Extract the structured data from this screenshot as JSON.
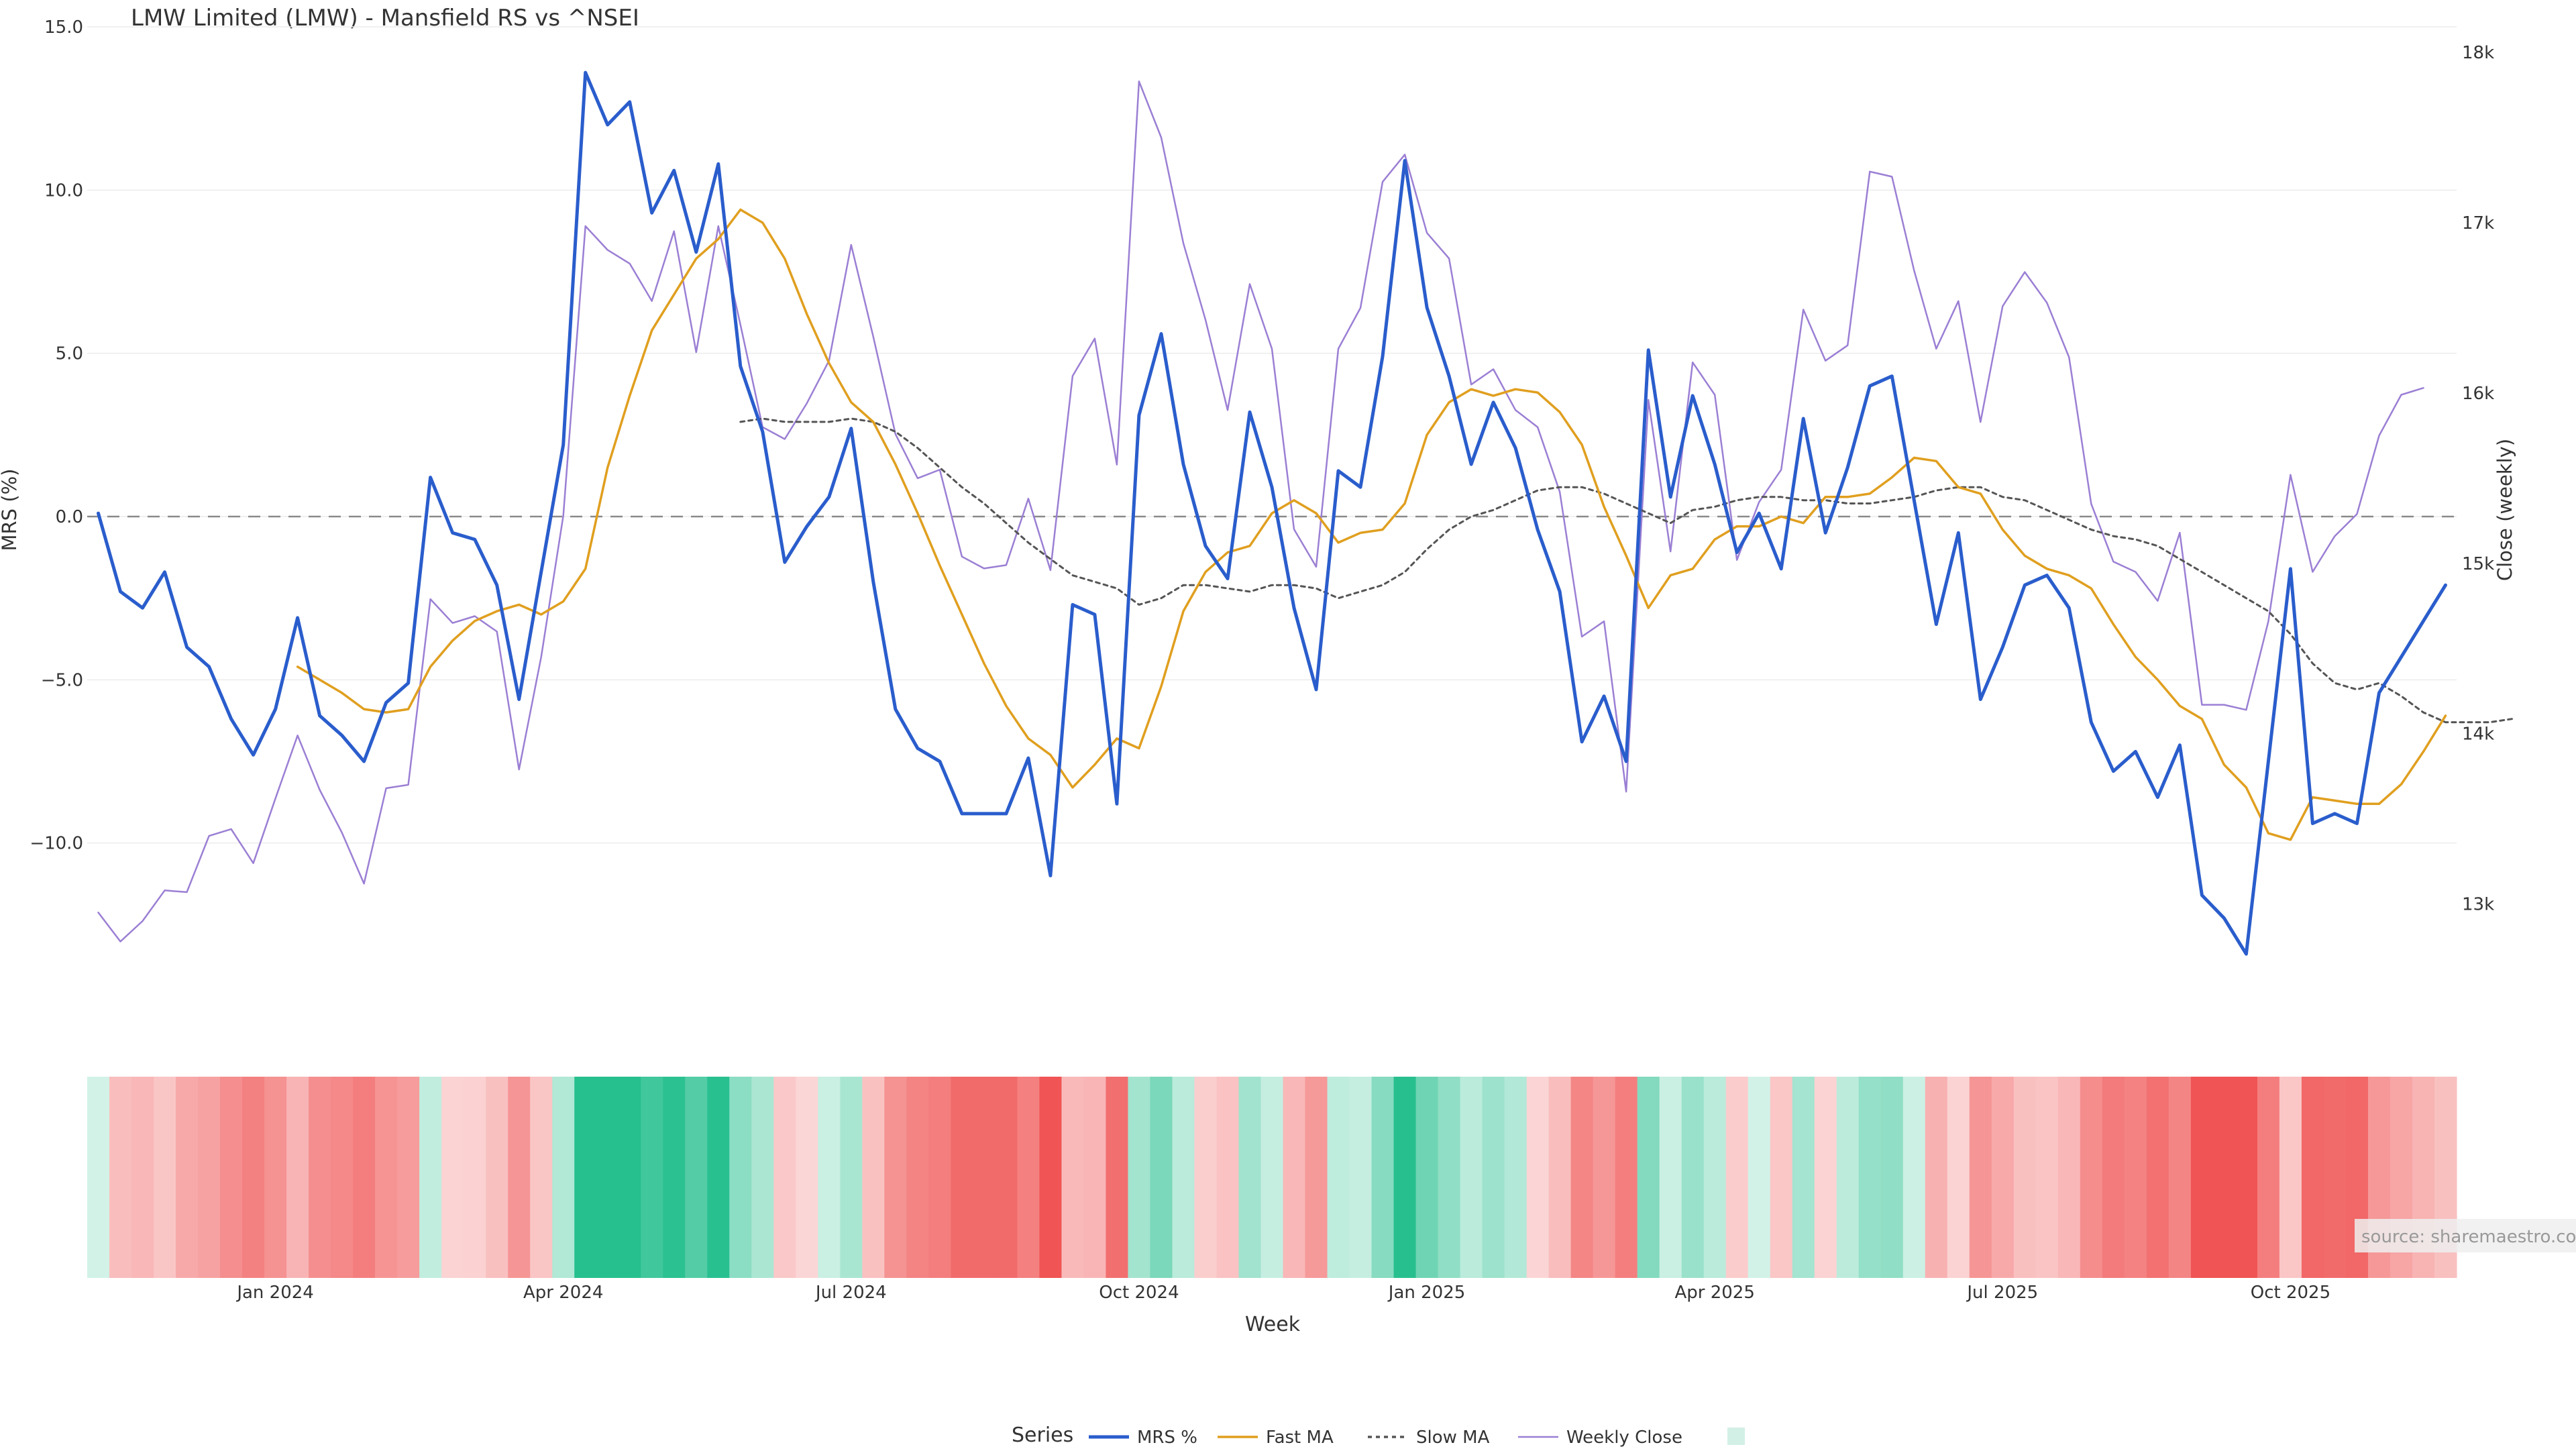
{
  "chart_data": {
    "type": "line",
    "title": "LMW Limited (LMW) - Mansfield RS vs ^NSEI",
    "xlabel": "Week",
    "ylabel_left": "MRS (%)",
    "ylabel_right": "Close (weekly)",
    "ylim_left": [
      -15.0,
      15.0
    ],
    "ylim_right": [
      12400,
      18150
    ],
    "left_ticks": [
      15.0,
      10.0,
      5.0,
      0.0,
      -5.0,
      -10.0
    ],
    "left_tick_labels": [
      "15.0",
      "10.0",
      "5.0",
      "0.0",
      "−5.0",
      "−10.0"
    ],
    "right_ticks": [
      18000,
      17000,
      16000,
      15000,
      14000,
      13000
    ],
    "right_tick_labels": [
      "18k",
      "17k",
      "16k",
      "15k",
      "14k",
      "13k"
    ],
    "x_tick_positions": [
      8.5,
      21.5,
      34.5,
      47.5,
      60.5,
      73.5,
      86.5,
      99.5
    ],
    "x_tick_labels": [
      "Jan 2024",
      "Apr 2024",
      "Jul 2024",
      "Oct 2024",
      "Jan 2025",
      "Apr 2025",
      "Jul 2025",
      "Oct 2025"
    ],
    "legend": {
      "title": "Series",
      "position": "bottom-center",
      "items": [
        {
          "name": "MRS %",
          "style": "solid-thick",
          "color": "#2a5dcc"
        },
        {
          "name": "Fast MA",
          "style": "solid",
          "color": "#e09f1f"
        },
        {
          "name": "Slow MA",
          "style": "dotted",
          "color": "#555555"
        },
        {
          "name": "Weekly Close",
          "style": "solid-thin",
          "color": "#9b7fd4"
        },
        {
          "name": "",
          "style": "swatch",
          "color": "#d3f0e6"
        }
      ]
    },
    "source_note": "source: sharemaestro.com",
    "series": [
      {
        "name": "MRS %",
        "axis": "left",
        "values": [
          0.1,
          -2.3,
          -2.8,
          -1.7,
          -4.0,
          -4.6,
          -6.2,
          -7.3,
          -5.9,
          -3.1,
          -6.1,
          -6.7,
          -7.5,
          -5.7,
          -5.1,
          1.2,
          -0.5,
          -0.7,
          -2.1,
          -5.6,
          -1.7,
          2.2,
          13.6,
          12.0,
          12.7,
          9.3,
          10.6,
          8.1,
          10.8,
          4.6,
          2.6,
          -1.4,
          -0.3,
          0.6,
          2.7,
          -2.0,
          -5.9,
          -7.1,
          -7.5,
          -9.1,
          -9.1,
          -9.1,
          -7.4,
          -11.0,
          -2.7,
          -3.0,
          -8.8,
          3.1,
          5.6,
          1.6,
          -0.9,
          -1.9,
          3.2,
          0.9,
          -2.8,
          -5.3,
          1.4,
          0.9,
          4.9,
          10.9,
          6.4,
          4.3,
          1.6,
          3.5,
          2.1,
          -0.4,
          -2.3,
          -6.9,
          -5.5,
          -7.5,
          5.1,
          0.6,
          3.7,
          1.6,
          -1.1,
          0.1,
          -1.6,
          3.0,
          -0.5,
          1.5,
          4.0,
          4.3,
          0.5,
          -3.3,
          -0.5,
          -5.6,
          -4.0,
          -2.1,
          -1.8,
          -2.8,
          -6.3,
          -7.8,
          -7.2,
          -8.6,
          -7.0,
          -11.6,
          -12.3,
          -13.4,
          -7.5,
          -1.6,
          -9.4,
          -9.1,
          -9.4,
          -5.4,
          -4.3,
          -3.2,
          -2.1
        ]
      },
      {
        "name": "Fast MA",
        "axis": "left",
        "start_index": 9,
        "values": [
          -4.6,
          -5.0,
          -5.4,
          -5.9,
          -6.0,
          -5.9,
          -4.6,
          -3.8,
          -3.2,
          -2.9,
          -2.7,
          -3.0,
          -2.6,
          -1.6,
          1.5,
          3.7,
          5.7,
          6.8,
          7.9,
          8.5,
          9.4,
          9.0,
          7.9,
          6.2,
          4.7,
          3.5,
          2.9,
          1.6,
          0.1,
          -1.5,
          -3.0,
          -4.5,
          -5.8,
          -6.8,
          -7.3,
          -8.3,
          -7.6,
          -6.8,
          -7.1,
          -5.2,
          -2.9,
          -1.7,
          -1.1,
          -0.9,
          0.1,
          0.5,
          0.1,
          -0.8,
          -0.5,
          -0.4,
          0.4,
          2.5,
          3.5,
          3.9,
          3.7,
          3.9,
          3.8,
          3.2,
          2.2,
          0.3,
          -1.2,
          -2.8,
          -1.8,
          -1.6,
          -0.7,
          -0.3,
          -0.3,
          0.0,
          -0.2,
          0.6,
          0.6,
          0.7,
          1.2,
          1.8,
          1.7,
          0.9,
          0.7,
          -0.4,
          -1.2,
          -1.6,
          -1.8,
          -2.2,
          -3.3,
          -4.3,
          -5.0,
          -5.8,
          -6.2,
          -7.6,
          -8.3,
          -9.7,
          -9.9,
          -8.6,
          -8.7,
          -8.8,
          -8.8,
          -8.2,
          -7.2,
          -6.1
        ]
      },
      {
        "name": "Slow MA",
        "axis": "left",
        "start_index": 29,
        "values": [
          2.9,
          3.0,
          2.9,
          2.9,
          2.9,
          3.0,
          2.9,
          2.6,
          2.1,
          1.5,
          0.9,
          0.4,
          -0.2,
          -0.8,
          -1.3,
          -1.8,
          -2.0,
          -2.2,
          -2.7,
          -2.5,
          -2.1,
          -2.1,
          -2.2,
          -2.3,
          -2.1,
          -2.1,
          -2.2,
          -2.5,
          -2.3,
          -2.1,
          -1.7,
          -1.0,
          -0.4,
          0.0,
          0.2,
          0.5,
          0.8,
          0.9,
          0.9,
          0.7,
          0.4,
          0.1,
          -0.2,
          0.2,
          0.3,
          0.5,
          0.6,
          0.6,
          0.5,
          0.5,
          0.4,
          0.4,
          0.5,
          0.6,
          0.8,
          0.9,
          0.9,
          0.6,
          0.5,
          0.2,
          -0.1,
          -0.4,
          -0.6,
          -0.7,
          -0.9,
          -1.3,
          -1.7,
          -2.1,
          -2.5,
          -2.9,
          -3.6,
          -4.5,
          -5.1,
          -5.3,
          -5.1,
          -5.5,
          -6.0,
          -6.3,
          -6.3,
          -6.3,
          -6.2
        ]
      },
      {
        "name": "Weekly Close",
        "axis": "right",
        "values": [
          12950,
          12780,
          12900,
          13080,
          13070,
          13400,
          13440,
          13240,
          13620,
          13990,
          13670,
          13420,
          13120,
          13680,
          13700,
          14790,
          14650,
          14690,
          14600,
          13790,
          14450,
          15280,
          16980,
          16840,
          16760,
          16540,
          16950,
          16240,
          16980,
          16400,
          15800,
          15730,
          15940,
          16190,
          16870,
          16330,
          15760,
          15500,
          15550,
          15040,
          14970,
          14990,
          15380,
          14960,
          16100,
          16320,
          15580,
          17830,
          17500,
          16880,
          16430,
          15900,
          16640,
          16260,
          15200,
          14980,
          16260,
          16500,
          17240,
          17400,
          16940,
          16790,
          16050,
          16140,
          15900,
          15800,
          15420,
          14570,
          14660,
          13660,
          15960,
          15070,
          16180,
          15990,
          15020,
          15360,
          15550,
          16490,
          16190,
          16280,
          17300,
          17270,
          16720,
          16260,
          16540,
          15830,
          16510,
          16710,
          16530,
          16210,
          15350,
          15010,
          14950,
          14780,
          15180,
          14170,
          14170,
          14140,
          14660,
          15520,
          14950,
          15160,
          15290,
          15750,
          15990,
          16030
        ]
      }
    ],
    "heatmap": {
      "name": "MRS heat strip",
      "values": [
        0.1,
        -2.3,
        -2.8,
        -1.7,
        -4.0,
        -4.6,
        -6.2,
        -7.3,
        -5.9,
        -3.1,
        -6.1,
        -6.7,
        -7.5,
        -5.7,
        -5.1,
        1.2,
        -0.5,
        -0.7,
        -2.1,
        -5.6,
        -1.7,
        2.2,
        13.6,
        12.0,
        12.7,
        9.3,
        10.6,
        8.1,
        10.8,
        4.6,
        2.6,
        -1.4,
        -0.3,
        0.6,
        2.7,
        -2.0,
        -5.9,
        -7.1,
        -7.5,
        -9.1,
        -9.1,
        -9.1,
        -7.4,
        -11.0,
        -2.7,
        -3.0,
        -8.8,
        3.1,
        5.6,
        1.6,
        -0.9,
        -1.9,
        3.2,
        0.9,
        -2.8,
        -5.3,
        1.4,
        0.9,
        4.9,
        10.9,
        6.4,
        4.3,
        1.6,
        3.5,
        2.1,
        -0.4,
        -2.3,
        -6.9,
        -5.5,
        -7.5,
        5.1,
        0.6,
        3.7,
        1.6,
        -1.1,
        0.1,
        -1.6,
        3.0,
        -0.5,
        1.5,
        4.0,
        4.3,
        0.5,
        -3.3,
        -0.5,
        -5.6,
        -4.0,
        -2.1,
        -1.8,
        -2.8,
        -6.3,
        -7.8,
        -7.2,
        -8.6,
        -7.0,
        -11.6,
        -12.3,
        -13.4,
        -7.5,
        -1.6,
        -9.4,
        -9.1,
        -9.4,
        -5.4,
        -4.3,
        -3.2,
        -2.1
      ]
    }
  }
}
